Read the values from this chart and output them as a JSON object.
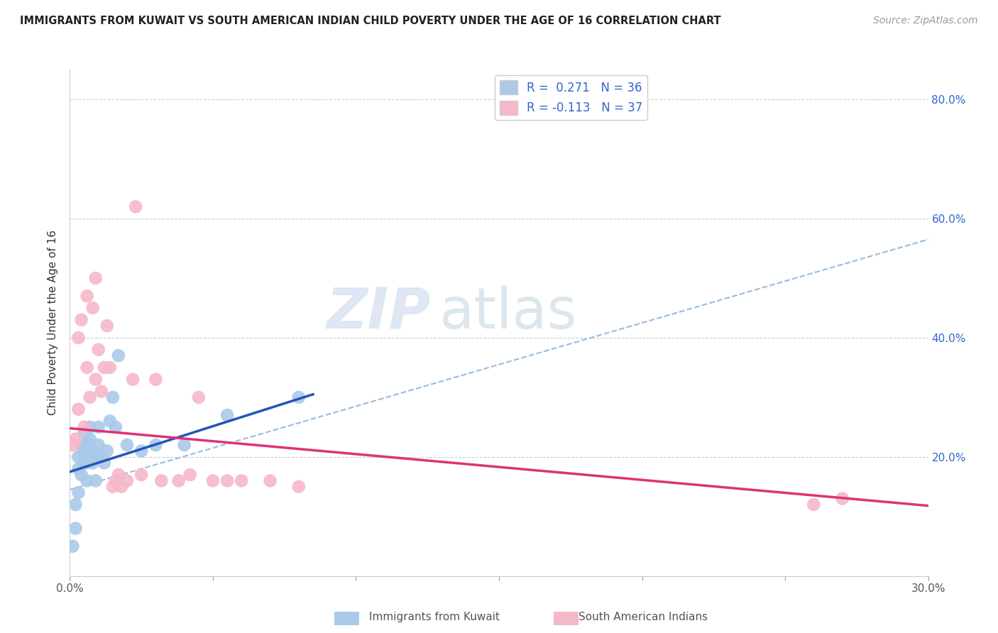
{
  "title": "IMMIGRANTS FROM KUWAIT VS SOUTH AMERICAN INDIAN CHILD POVERTY UNDER THE AGE OF 16 CORRELATION CHART",
  "source": "Source: ZipAtlas.com",
  "ylabel": "Child Poverty Under the Age of 16",
  "xlim": [
    0.0,
    0.3
  ],
  "ylim": [
    0.0,
    0.85
  ],
  "ytick_vals": [
    0.0,
    0.2,
    0.4,
    0.6,
    0.8
  ],
  "xtick_vals": [
    0.0,
    0.05,
    0.1,
    0.15,
    0.2,
    0.25,
    0.3
  ],
  "legend1_label": "R =  0.271   N = 36",
  "legend2_label": "R = -0.113   N = 37",
  "legend1_color": "#aac9e8",
  "legend2_color": "#f5b8c8",
  "line1_color": "#2255bb",
  "line2_color": "#dd3377",
  "dashed_line_color": "#99bbdd",
  "watermark_zip": "ZIP",
  "watermark_atlas": "atlas",
  "kuwait_x": [
    0.001,
    0.002,
    0.002,
    0.003,
    0.003,
    0.003,
    0.004,
    0.004,
    0.005,
    0.005,
    0.005,
    0.006,
    0.006,
    0.006,
    0.007,
    0.007,
    0.007,
    0.008,
    0.008,
    0.009,
    0.009,
    0.01,
    0.01,
    0.011,
    0.012,
    0.013,
    0.014,
    0.015,
    0.016,
    0.017,
    0.02,
    0.025,
    0.03,
    0.04,
    0.055,
    0.08
  ],
  "kuwait_y": [
    0.05,
    0.08,
    0.12,
    0.14,
    0.18,
    0.2,
    0.17,
    0.22,
    0.19,
    0.21,
    0.24,
    0.16,
    0.19,
    0.22,
    0.2,
    0.23,
    0.25,
    0.19,
    0.21,
    0.16,
    0.2,
    0.22,
    0.25,
    0.2,
    0.19,
    0.21,
    0.26,
    0.3,
    0.25,
    0.37,
    0.22,
    0.21,
    0.22,
    0.22,
    0.27,
    0.3
  ],
  "sai_x": [
    0.001,
    0.002,
    0.003,
    0.003,
    0.004,
    0.005,
    0.006,
    0.006,
    0.007,
    0.008,
    0.009,
    0.009,
    0.01,
    0.011,
    0.012,
    0.013,
    0.014,
    0.015,
    0.016,
    0.017,
    0.018,
    0.02,
    0.022,
    0.023,
    0.025,
    0.03,
    0.032,
    0.038,
    0.042,
    0.045,
    0.05,
    0.055,
    0.06,
    0.07,
    0.08,
    0.26,
    0.27
  ],
  "sai_y": [
    0.22,
    0.23,
    0.4,
    0.28,
    0.43,
    0.25,
    0.47,
    0.35,
    0.3,
    0.45,
    0.33,
    0.5,
    0.38,
    0.31,
    0.35,
    0.42,
    0.35,
    0.15,
    0.16,
    0.17,
    0.15,
    0.16,
    0.33,
    0.62,
    0.17,
    0.33,
    0.16,
    0.16,
    0.17,
    0.3,
    0.16,
    0.16,
    0.16,
    0.16,
    0.15,
    0.12,
    0.13
  ],
  "kuwait_line_x": [
    0.0,
    0.085
  ],
  "kuwait_line_y": [
    0.175,
    0.305
  ],
  "dashed_line_x": [
    0.0,
    0.3
  ],
  "dashed_line_y": [
    0.145,
    0.565
  ],
  "sai_line_x": [
    0.0,
    0.3
  ],
  "sai_line_y": [
    0.248,
    0.118
  ]
}
